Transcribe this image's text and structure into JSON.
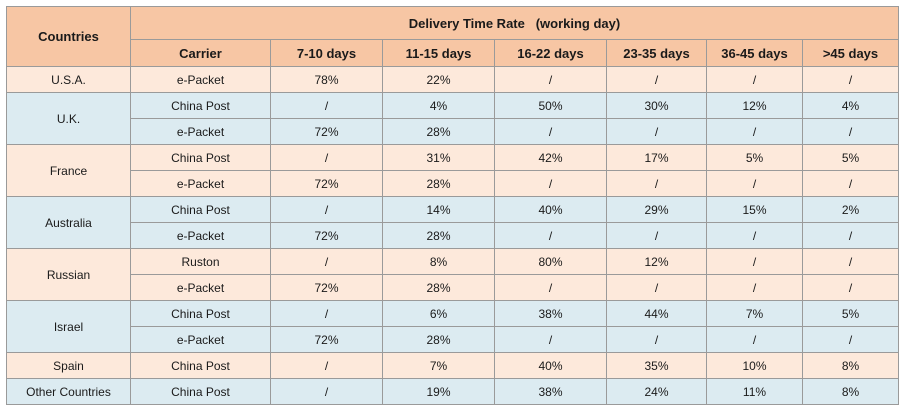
{
  "table": {
    "countries_header": "Countries",
    "title": "Delivery Time Rate   (working day)",
    "columns": [
      "Carrier",
      "7-10 days",
      "11-15 days",
      "16-22 days",
      "23-35 days",
      "36-45 days",
      ">45 days"
    ],
    "groups": [
      {
        "country": "U.S.A.",
        "color": "#fde9db",
        "rows": [
          {
            "carrier": "e-Packet",
            "values": [
              "78%",
              "22%",
              "/",
              "/",
              "/",
              "/"
            ]
          }
        ]
      },
      {
        "country": "U.K.",
        "color": "#dcebf1",
        "rows": [
          {
            "carrier": "China Post",
            "values": [
              "/",
              "4%",
              "50%",
              "30%",
              "12%",
              "4%"
            ]
          },
          {
            "carrier": "e-Packet",
            "values": [
              "72%",
              "28%",
              "/",
              "/",
              "/",
              "/"
            ]
          }
        ]
      },
      {
        "country": "France",
        "color": "#fde9db",
        "rows": [
          {
            "carrier": "China Post",
            "values": [
              "/",
              "31%",
              "42%",
              "17%",
              "5%",
              "5%"
            ]
          },
          {
            "carrier": "e-Packet",
            "values": [
              "72%",
              "28%",
              "/",
              "/",
              "/",
              "/"
            ]
          }
        ]
      },
      {
        "country": "Australia",
        "color": "#dcebf1",
        "rows": [
          {
            "carrier": "China Post",
            "values": [
              "/",
              "14%",
              "40%",
              "29%",
              "15%",
              "2%"
            ]
          },
          {
            "carrier": "e-Packet",
            "values": [
              "72%",
              "28%",
              "/",
              "/",
              "/",
              "/"
            ]
          }
        ]
      },
      {
        "country": "Russian",
        "color": "#fde9db",
        "rows": [
          {
            "carrier": "Ruston",
            "values": [
              "/",
              "8%",
              "80%",
              "12%",
              "/",
              "/"
            ]
          },
          {
            "carrier": "e-Packet",
            "values": [
              "72%",
              "28%",
              "/",
              "/",
              "/",
              "/"
            ]
          }
        ]
      },
      {
        "country": "Israel",
        "color": "#dcebf1",
        "rows": [
          {
            "carrier": "China Post",
            "values": [
              "/",
              "6%",
              "38%",
              "44%",
              "7%",
              "5%"
            ]
          },
          {
            "carrier": "e-Packet",
            "values": [
              "72%",
              "28%",
              "/",
              "/",
              "/",
              "/"
            ]
          }
        ]
      },
      {
        "country": "Spain",
        "color": "#fde9db",
        "rows": [
          {
            "carrier": "China Post",
            "values": [
              "/",
              "7%",
              "40%",
              "35%",
              "10%",
              "8%"
            ]
          }
        ]
      },
      {
        "country": "Other Countries",
        "color": "#dcebf1",
        "rows": [
          {
            "carrier": "China Post",
            "values": [
              "/",
              "19%",
              "38%",
              "24%",
              "11%",
              "8%"
            ]
          }
        ]
      }
    ]
  },
  "colors": {
    "header_bg": "#f7c6a4",
    "peach_bg": "#fde9db",
    "blue_bg": "#dcebf1",
    "border": "#9a9a9a"
  }
}
